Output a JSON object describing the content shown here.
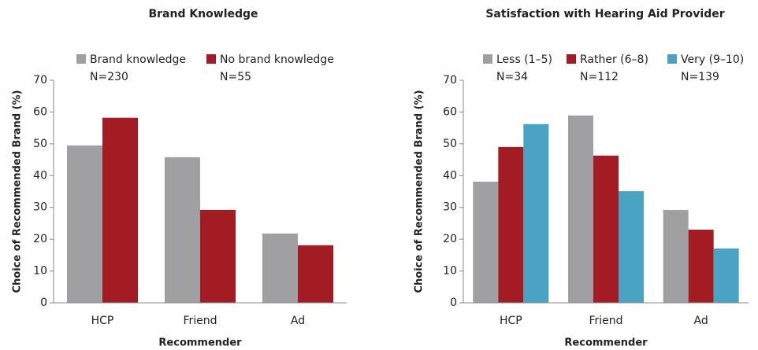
{
  "chart_data": [
    {
      "type": "bar",
      "title": "Brand Knowledge",
      "x_label": "Recommender",
      "y_label": "Choice of Recommended Brand (%)",
      "categories": [
        "HCP",
        "Friend",
        "Ad"
      ],
      "series": [
        {
          "name": "Brand knowledge",
          "sample_size": "N=230",
          "color": "#a0a0a2",
          "values": [
            49.5,
            45.8,
            21.8
          ]
        },
        {
          "name": "No brand knowledge",
          "sample_size": "N=55",
          "color": "#a31c24",
          "values": [
            58.2,
            29.2,
            18.1
          ]
        }
      ],
      "ylim": [
        0,
        70
      ],
      "yticks": [
        0,
        10,
        20,
        30,
        40,
        50,
        60,
        70
      ]
    },
    {
      "type": "bar",
      "title": "Satisfaction with Hearing Aid Provider",
      "x_label": "Recommender",
      "y_label": "Choice of Recommended Brand (%)",
      "categories": [
        "HCP",
        "Friend",
        "Ad"
      ],
      "series": [
        {
          "name": "Less (1–5)",
          "sample_size": "N=34",
          "color": "#a0a0a2",
          "values": [
            38.1,
            58.9,
            29.2
          ]
        },
        {
          "name": "Rather (6–8)",
          "sample_size": "N=112",
          "color": "#a31c24",
          "values": [
            49.0,
            46.3,
            23.0
          ]
        },
        {
          "name": "Very (9–10)",
          "sample_size": "N=139",
          "color": "#4aa3c3",
          "values": [
            56.2,
            35.1,
            17.1
          ]
        }
      ],
      "ylim": [
        0,
        70
      ],
      "yticks": [
        0,
        10,
        20,
        30,
        40,
        50,
        60,
        70
      ]
    }
  ]
}
